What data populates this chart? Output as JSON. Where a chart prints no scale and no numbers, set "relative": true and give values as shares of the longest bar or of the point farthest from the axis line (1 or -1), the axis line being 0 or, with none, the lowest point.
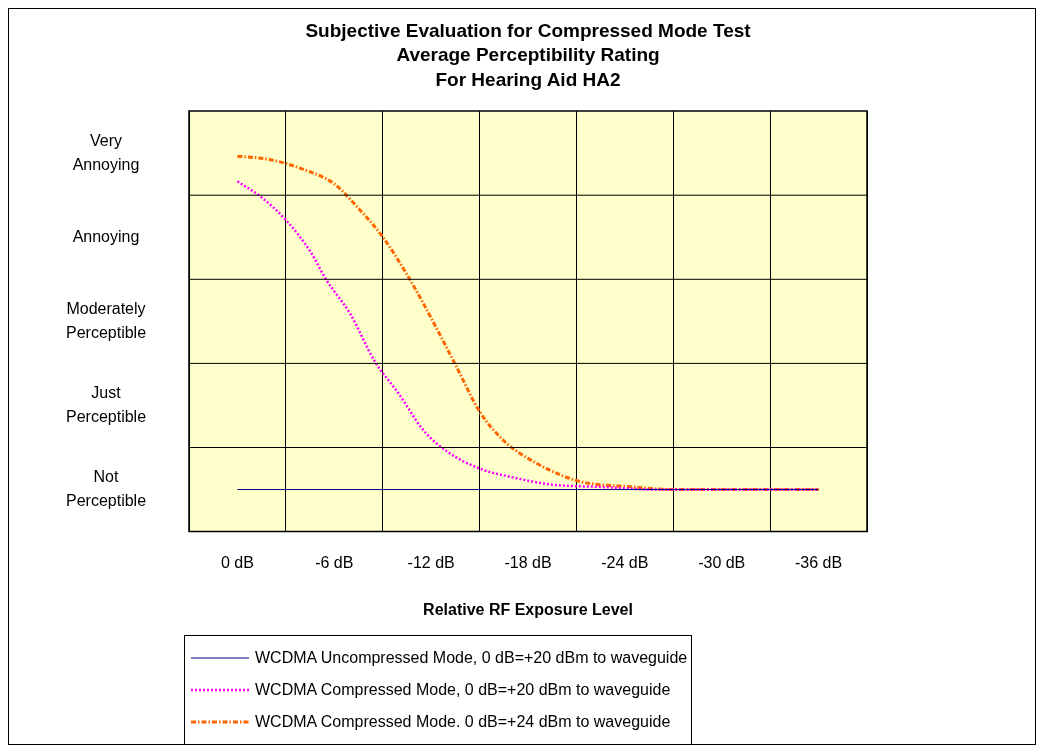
{
  "chart_data": {
    "type": "line",
    "title": "Subjective Evaluation for Compressed Mode Test\nAverage Perceptibility Rating\nFor Hearing Aid HA2",
    "xlabel": "Relative RF Exposure Level",
    "xlim": [
      3,
      -39
    ],
    "xticks": [
      {
        "value": 3,
        "label": null
      },
      {
        "value": 0,
        "label": "0 dB"
      },
      {
        "value": -3,
        "label": null
      },
      {
        "value": -6,
        "label": "-6 dB"
      },
      {
        "value": -9,
        "label": null
      },
      {
        "value": -12,
        "label": "-12 dB"
      },
      {
        "value": -15,
        "label": null
      },
      {
        "value": -18,
        "label": "-18 dB"
      },
      {
        "value": -21,
        "label": null
      },
      {
        "value": -24,
        "label": "-24 dB"
      },
      {
        "value": -27,
        "label": null
      },
      {
        "value": -30,
        "label": "-30 dB"
      },
      {
        "value": -33,
        "label": null
      },
      {
        "value": -36,
        "label": "-36 dB"
      },
      {
        "value": -39,
        "label": null
      }
    ],
    "relative": true,
    "annotations": [
      "Very Annoying",
      "Annoying",
      "Moderately Perceptible",
      "Just Perceptible",
      "Not Perceptible"
    ],
    "grid": true,
    "legend": "bottom",
    "marker": "none",
    "series": [
      {
        "name": "WCDMA Uncompressed Mode, 0 dB=+20 dBm to waveguide",
        "color": "#000080",
        "line_style": "solid",
        "x": [
          0,
          -36
        ],
        "values": [
          0.112,
          0.112
        ]
      },
      {
        "name": "WCDMA Compressed Mode, 0 dB=+20 dBm to waveguide",
        "color": "#ff00ff",
        "line_style": "dotted",
        "x": [
          0,
          -1.5,
          -3,
          -4.5,
          -5.5,
          -7,
          -8.5,
          -10,
          -11.5,
          -13,
          -15,
          -17,
          -19.5,
          -22.5,
          -26,
          -30,
          -36
        ],
        "values": [
          0.933,
          0.89,
          0.83,
          0.747,
          0.671,
          0.579,
          0.454,
          0.367,
          0.271,
          0.213,
          0.168,
          0.145,
          0.125,
          0.119,
          0.112,
          0.112,
          0.112
        ]
      },
      {
        "name": "WCDMA Compressed Mode. 0 dB=+24 dBm to waveguide",
        "color": "#ff6600",
        "line_style": "dashed",
        "x": [
          0,
          -2,
          -4,
          -6,
          -7.5,
          -9,
          -10.5,
          -11.5,
          -13.5,
          -15,
          -16.5,
          -18,
          -21,
          -24.5,
          -27,
          -30,
          -36
        ],
        "values": [
          1,
          0.991,
          0.966,
          0.926,
          0.861,
          0.785,
          0.685,
          0.609,
          0.445,
          0.32,
          0.242,
          0.195,
          0.136,
          0.119,
          0.112,
          0.112,
          0.112
        ]
      }
    ]
  }
}
